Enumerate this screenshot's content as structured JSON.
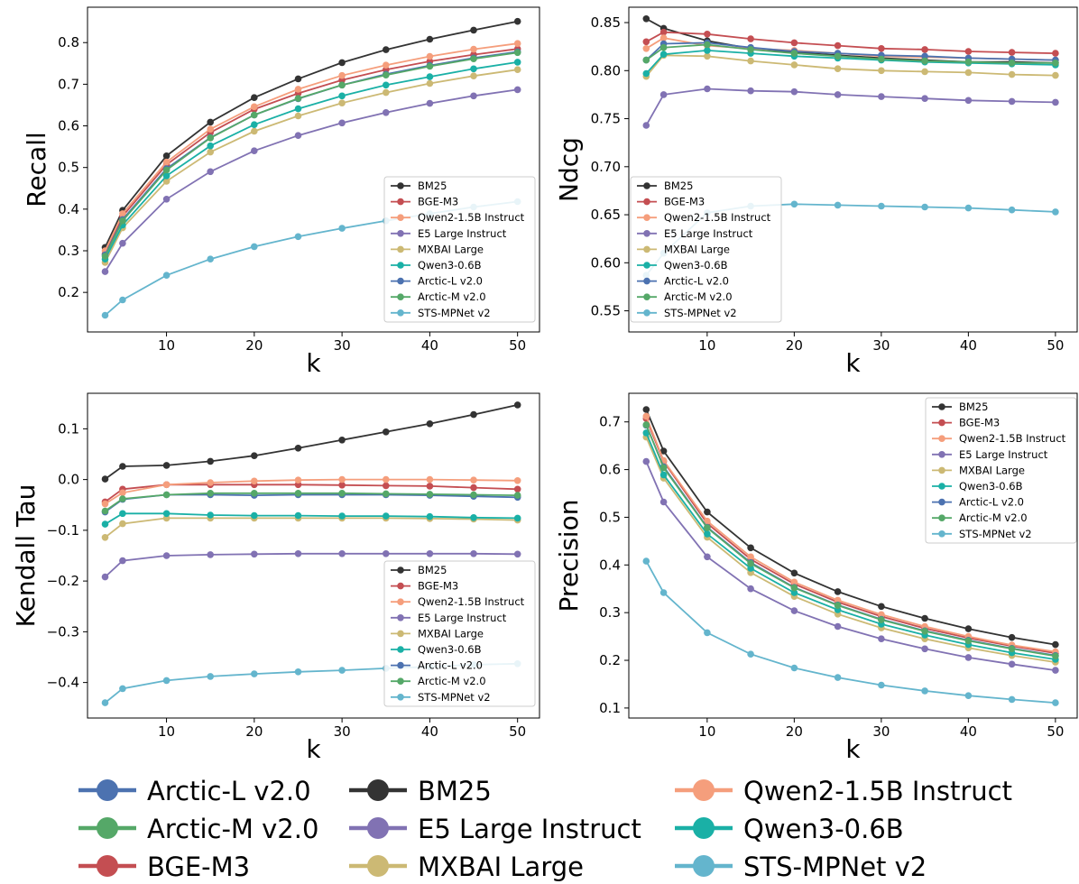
{
  "colors": {
    "BM25": "#333333",
    "BGE-M3": "#c44e52",
    "Qwen2-1.5B Instruct": "#f59e7c",
    "E5 Large Instruct": "#8172b3",
    "MXBAI Large": "#ccb974",
    "Qwen3-0.6B": "#1ab0a6",
    "Arctic-L v2.0": "#4c72b0",
    "Arctic-M v2.0": "#55a868",
    "STS-MPNet v2": "#64b5cd"
  },
  "chart_data": [
    {
      "type": "line",
      "title": "",
      "xlabel": "k",
      "ylabel": "Recall",
      "xlim": [
        1,
        52.5
      ],
      "ylim": [
        0.105,
        0.885
      ],
      "xticks": [
        10,
        20,
        30,
        40,
        50
      ],
      "yticks": [
        0.2,
        0.3,
        0.4,
        0.5,
        0.6,
        0.7,
        0.8
      ],
      "ytick_labels": [
        "0.2",
        "0.3",
        "0.4",
        "0.5",
        "0.6",
        "0.7",
        "0.8"
      ],
      "legend_position": "lower-right",
      "x": [
        3,
        5,
        10,
        15,
        20,
        25,
        30,
        35,
        40,
        45,
        50
      ],
      "series": [
        {
          "name": "BM25",
          "values": [
            0.308,
            0.397,
            0.528,
            0.609,
            0.668,
            0.713,
            0.752,
            0.783,
            0.808,
            0.83,
            0.851
          ]
        },
        {
          "name": "BGE-M3",
          "values": [
            0.293,
            0.383,
            0.507,
            0.584,
            0.64,
            0.678,
            0.71,
            0.735,
            0.755,
            0.771,
            0.785
          ]
        },
        {
          "name": "Qwen2-1.5B Instruct",
          "values": [
            0.3,
            0.389,
            0.513,
            0.592,
            0.646,
            0.688,
            0.721,
            0.746,
            0.767,
            0.784,
            0.798
          ]
        },
        {
          "name": "E5 Large Instruct",
          "values": [
            0.25,
            0.318,
            0.424,
            0.49,
            0.54,
            0.577,
            0.607,
            0.632,
            0.654,
            0.672,
            0.687
          ]
        },
        {
          "name": "MXBAI Large",
          "values": [
            0.272,
            0.355,
            0.467,
            0.537,
            0.587,
            0.624,
            0.655,
            0.68,
            0.702,
            0.72,
            0.735
          ]
        },
        {
          "name": "Qwen3-0.6B",
          "values": [
            0.28,
            0.362,
            0.48,
            0.552,
            0.603,
            0.641,
            0.672,
            0.698,
            0.718,
            0.737,
            0.753
          ]
        },
        {
          "name": "Arctic-L v2.0",
          "values": [
            0.29,
            0.375,
            0.497,
            0.572,
            0.626,
            0.665,
            0.698,
            0.724,
            0.745,
            0.763,
            0.778
          ]
        },
        {
          "name": "Arctic-M v2.0",
          "values": [
            0.287,
            0.372,
            0.494,
            0.571,
            0.626,
            0.666,
            0.698,
            0.722,
            0.743,
            0.761,
            0.776
          ]
        },
        {
          "name": "STS-MPNet v2",
          "values": [
            0.145,
            0.182,
            0.241,
            0.28,
            0.31,
            0.334,
            0.354,
            0.372,
            0.389,
            0.405,
            0.418
          ]
        }
      ]
    },
    {
      "type": "line",
      "title": "",
      "xlabel": "k",
      "ylabel": "Ndcg",
      "xlim": [
        1,
        52.5
      ],
      "ylim": [
        0.528,
        0.866
      ],
      "xticks": [
        10,
        20,
        30,
        40,
        50
      ],
      "yticks": [
        0.55,
        0.6,
        0.65,
        0.7,
        0.75,
        0.8,
        0.85
      ],
      "ytick_labels": [
        "0.55",
        "0.60",
        "0.65",
        "0.70",
        "0.75",
        "0.80",
        "0.85"
      ],
      "legend_position": "lower-left",
      "x": [
        3,
        5,
        10,
        15,
        20,
        25,
        30,
        35,
        40,
        45,
        50
      ],
      "series": [
        {
          "name": "BM25",
          "values": [
            0.854,
            0.844,
            0.831,
            0.823,
            0.819,
            0.816,
            0.813,
            0.811,
            0.809,
            0.809,
            0.808
          ]
        },
        {
          "name": "BGE-M3",
          "values": [
            0.83,
            0.84,
            0.838,
            0.833,
            0.829,
            0.826,
            0.823,
            0.822,
            0.82,
            0.819,
            0.818
          ]
        },
        {
          "name": "Qwen2-1.5B Instruct",
          "values": [
            0.823,
            0.834,
            0.826,
            0.823,
            0.821,
            0.818,
            0.815,
            0.814,
            0.813,
            0.812,
            0.811
          ]
        },
        {
          "name": "E5 Large Instruct",
          "values": [
            0.743,
            0.775,
            0.781,
            0.779,
            0.778,
            0.775,
            0.773,
            0.771,
            0.769,
            0.768,
            0.767
          ]
        },
        {
          "name": "MXBAI Large",
          "values": [
            0.794,
            0.816,
            0.815,
            0.81,
            0.806,
            0.802,
            0.8,
            0.799,
            0.798,
            0.796,
            0.795
          ]
        },
        {
          "name": "Qwen3-0.6B",
          "values": [
            0.797,
            0.817,
            0.821,
            0.818,
            0.815,
            0.813,
            0.811,
            0.809,
            0.808,
            0.807,
            0.806
          ]
        },
        {
          "name": "Arctic-L v2.0",
          "values": [
            0.811,
            0.828,
            0.829,
            0.824,
            0.82,
            0.818,
            0.816,
            0.815,
            0.813,
            0.812,
            0.811
          ]
        },
        {
          "name": "Arctic-M v2.0",
          "values": [
            0.811,
            0.824,
            0.827,
            0.822,
            0.818,
            0.815,
            0.812,
            0.81,
            0.809,
            0.808,
            0.808
          ]
        },
        {
          "name": "STS-MPNet v2",
          "values": [
            0.587,
            0.61,
            0.652,
            0.659,
            0.661,
            0.66,
            0.659,
            0.658,
            0.657,
            0.655,
            0.653
          ]
        }
      ]
    },
    {
      "type": "line",
      "title": "",
      "xlabel": "k",
      "ylabel": "Kendall Tau",
      "xlim": [
        1,
        52.5
      ],
      "ylim": [
        -0.47,
        0.17
      ],
      "xticks": [
        10,
        20,
        30,
        40,
        50
      ],
      "yticks": [
        -0.4,
        -0.3,
        -0.2,
        -0.1,
        0.0,
        0.1
      ],
      "ytick_labels": [
        "−0.4",
        "−0.3",
        "−0.2",
        "−0.1",
        "0.0",
        "0.1"
      ],
      "legend_position": "lower-right",
      "x": [
        3,
        5,
        10,
        15,
        20,
        25,
        30,
        35,
        40,
        45,
        50
      ],
      "series": [
        {
          "name": "BM25",
          "values": [
            0.001,
            0.026,
            0.028,
            0.036,
            0.047,
            0.062,
            0.078,
            0.094,
            0.11,
            0.128,
            0.147
          ]
        },
        {
          "name": "BGE-M3",
          "values": [
            -0.044,
            -0.019,
            -0.01,
            -0.01,
            -0.01,
            -0.01,
            -0.011,
            -0.012,
            -0.013,
            -0.016,
            -0.019
          ]
        },
        {
          "name": "Qwen2-1.5B Instruct",
          "values": [
            -0.048,
            -0.026,
            -0.01,
            -0.006,
            -0.003,
            -0.001,
            0.0,
            0.0,
            0.0,
            -0.001,
            -0.002
          ]
        },
        {
          "name": "E5 Large Instruct",
          "values": [
            -0.192,
            -0.16,
            -0.15,
            -0.148,
            -0.147,
            -0.146,
            -0.146,
            -0.146,
            -0.146,
            -0.146,
            -0.147
          ]
        },
        {
          "name": "MXBAI Large",
          "values": [
            -0.114,
            -0.087,
            -0.076,
            -0.076,
            -0.076,
            -0.076,
            -0.076,
            -0.076,
            -0.077,
            -0.078,
            -0.08
          ]
        },
        {
          "name": "Qwen3-0.6B",
          "values": [
            -0.088,
            -0.067,
            -0.067,
            -0.07,
            -0.071,
            -0.071,
            -0.072,
            -0.072,
            -0.073,
            -0.075,
            -0.076
          ]
        },
        {
          "name": "Arctic-L v2.0",
          "values": [
            -0.064,
            -0.039,
            -0.03,
            -0.03,
            -0.031,
            -0.03,
            -0.03,
            -0.03,
            -0.031,
            -0.033,
            -0.035
          ]
        },
        {
          "name": "Arctic-M v2.0",
          "values": [
            -0.062,
            -0.038,
            -0.03,
            -0.027,
            -0.027,
            -0.027,
            -0.027,
            -0.028,
            -0.029,
            -0.03,
            -0.031
          ]
        },
        {
          "name": "STS-MPNet v2",
          "values": [
            -0.44,
            -0.412,
            -0.396,
            -0.388,
            -0.383,
            -0.379,
            -0.376,
            -0.372,
            -0.369,
            -0.365,
            -0.363
          ]
        }
      ]
    },
    {
      "type": "line",
      "title": "",
      "xlabel": "k",
      "ylabel": "Precision",
      "xlim": [
        1,
        52.5
      ],
      "ylim": [
        0.079,
        0.76
      ],
      "xticks": [
        10,
        20,
        30,
        40,
        50
      ],
      "yticks": [
        0.1,
        0.2,
        0.3,
        0.4,
        0.5,
        0.6,
        0.7
      ],
      "ytick_labels": [
        "0.1",
        "0.2",
        "0.3",
        "0.4",
        "0.5",
        "0.6",
        "0.7"
      ],
      "legend_position": "upper-right",
      "x": [
        3,
        5,
        10,
        15,
        20,
        25,
        30,
        35,
        40,
        45,
        50
      ],
      "series": [
        {
          "name": "BM25",
          "values": [
            0.726,
            0.639,
            0.511,
            0.436,
            0.383,
            0.344,
            0.313,
            0.288,
            0.266,
            0.248,
            0.233
          ]
        },
        {
          "name": "BGE-M3",
          "values": [
            0.707,
            0.617,
            0.487,
            0.412,
            0.36,
            0.322,
            0.292,
            0.267,
            0.247,
            0.23,
            0.215
          ]
        },
        {
          "name": "Qwen2-1.5B Instruct",
          "values": [
            0.712,
            0.619,
            0.492,
            0.417,
            0.364,
            0.326,
            0.296,
            0.271,
            0.25,
            0.232,
            0.218
          ]
        },
        {
          "name": "E5 Large Instruct",
          "values": [
            0.617,
            0.532,
            0.417,
            0.35,
            0.304,
            0.271,
            0.245,
            0.224,
            0.206,
            0.192,
            0.179
          ]
        },
        {
          "name": "MXBAI Large",
          "values": [
            0.668,
            0.582,
            0.458,
            0.384,
            0.334,
            0.297,
            0.268,
            0.245,
            0.226,
            0.21,
            0.196
          ]
        },
        {
          "name": "Qwen3-0.6B",
          "values": [
            0.677,
            0.589,
            0.465,
            0.393,
            0.342,
            0.306,
            0.276,
            0.253,
            0.233,
            0.216,
            0.202
          ]
        },
        {
          "name": "Arctic-L v2.0",
          "values": [
            0.693,
            0.606,
            0.479,
            0.405,
            0.353,
            0.316,
            0.286,
            0.262,
            0.242,
            0.225,
            0.21
          ]
        },
        {
          "name": "Arctic-M v2.0",
          "values": [
            0.694,
            0.604,
            0.478,
            0.403,
            0.352,
            0.315,
            0.285,
            0.261,
            0.241,
            0.224,
            0.209
          ]
        },
        {
          "name": "STS-MPNet v2",
          "values": [
            0.408,
            0.342,
            0.258,
            0.213,
            0.184,
            0.164,
            0.148,
            0.136,
            0.126,
            0.118,
            0.111
          ]
        }
      ]
    }
  ],
  "legend_order": [
    "BM25",
    "BGE-M3",
    "Qwen2-1.5B Instruct",
    "E5 Large Instruct",
    "MXBAI Large",
    "Qwen3-0.6B",
    "Arctic-L v2.0",
    "Arctic-M v2.0",
    "STS-MPNet v2"
  ],
  "figure_legend": [
    "Arctic-L v2.0",
    "BM25",
    "Qwen2-1.5B Instruct",
    "Arctic-M v2.0",
    "E5 Large Instruct",
    "Qwen3-0.6B",
    "BGE-M3",
    "MXBAI Large",
    "STS-MPNet v2"
  ]
}
